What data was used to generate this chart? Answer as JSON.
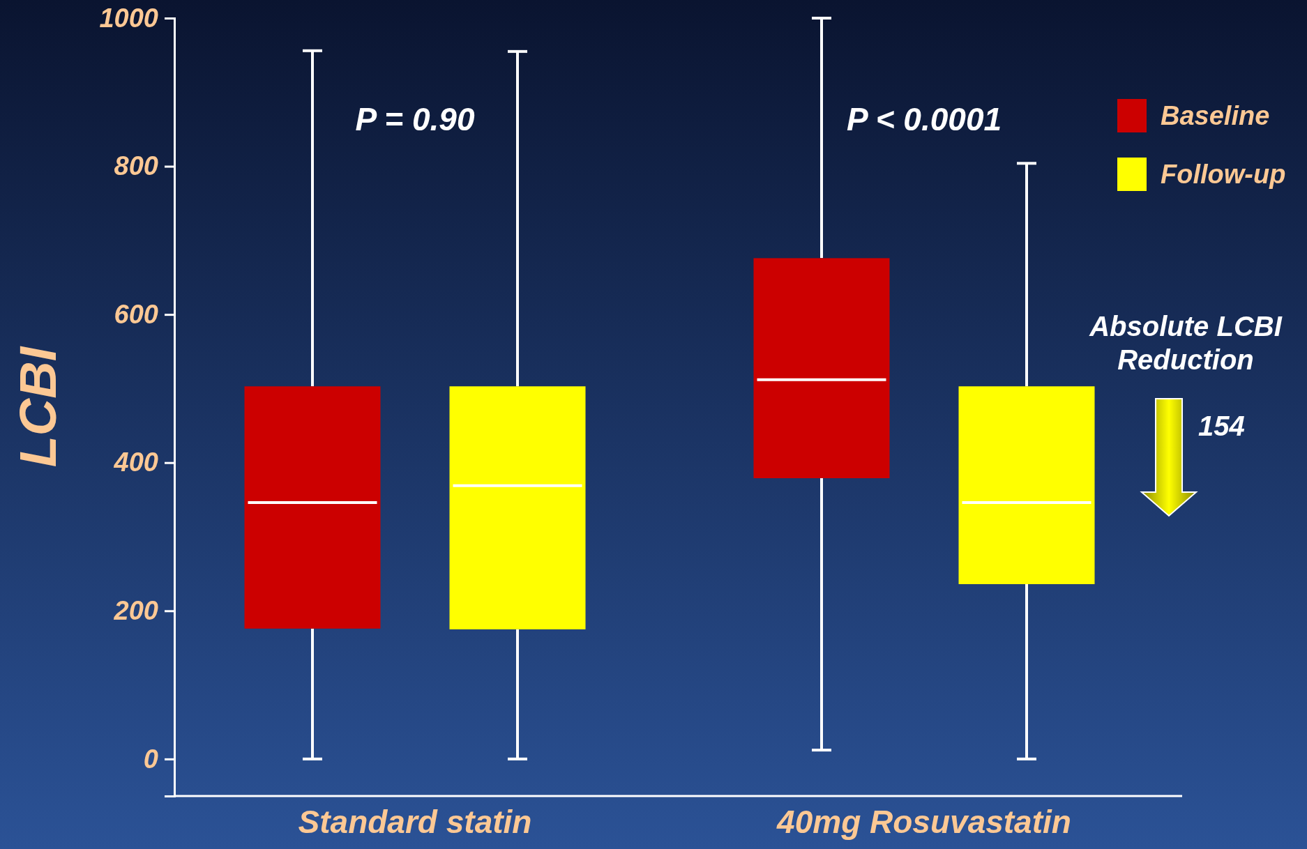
{
  "chart_data": {
    "type": "box",
    "ylabel": "LCBI",
    "categories": [
      "Standard statin",
      "40mg Rosuvastatin"
    ],
    "series": [
      {
        "name": "Baseline",
        "color": "#cc0000",
        "boxes": [
          {
            "low": 0,
            "q1": 176,
            "median": 346,
            "q3": 503,
            "high": 956
          },
          {
            "low": 12,
            "q1": 379,
            "median": 512,
            "q3": 676,
            "high": 1000
          }
        ]
      },
      {
        "name": "Follow-up",
        "color": "#ffff00",
        "boxes": [
          {
            "low": 0,
            "q1": 175,
            "median": 369,
            "q3": 503,
            "high": 955
          },
          {
            "low": 0,
            "q1": 236,
            "median": 346,
            "q3": 503,
            "high": 804
          }
        ]
      }
    ],
    "ylim": [
      -50,
      1000
    ],
    "yticks": [
      0,
      200,
      400,
      600,
      800,
      1000
    ],
    "grid": false,
    "legend": "top right",
    "annotations": [
      "P = 0.90",
      "P < 0.0001",
      "Absolute LCBI Reduction",
      "154"
    ]
  }
}
